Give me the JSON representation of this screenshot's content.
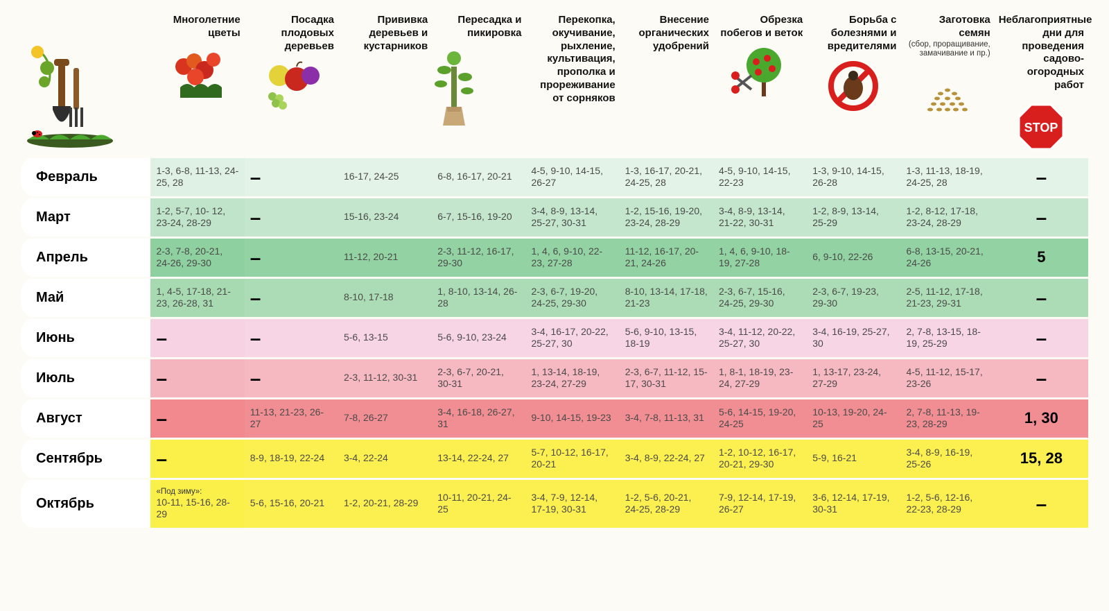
{
  "background_color": "#fcfbf5",
  "font_family": "Arial",
  "columns": [
    {
      "key": "perennials",
      "label": "Многолетние цветы"
    },
    {
      "key": "fruit_trees",
      "label": "Посадка плодовых деревьев"
    },
    {
      "key": "grafting",
      "label": "Прививка деревьев и кустарников"
    },
    {
      "key": "transplant",
      "label": "Пересадка и пикировка"
    },
    {
      "key": "digging",
      "label": "Перекопка, окучивание, рыхление, культивация, прополка и прореживание от сорняков"
    },
    {
      "key": "fertilize",
      "label": "Внесение органических удобрений"
    },
    {
      "key": "pruning",
      "label": "Обрезка побегов и веток"
    },
    {
      "key": "pests",
      "label": "Борьба с болезнями и вредителями"
    },
    {
      "key": "seeds",
      "label": "Заготовка семян",
      "sub": "(сбор, проращивание, замачивание и пр.)"
    },
    {
      "key": "bad",
      "label": "Неблагоприятные дни для проведения садово-огородных работ"
    }
  ],
  "row_gradients": {
    "feb": [
      "#dff1e4",
      "#e3f3e7",
      "#e3f3e7",
      "#e3f3e7",
      "#e3f3e7",
      "#e3f3e7",
      "#e3f3e7",
      "#e3f3e7",
      "#e3f3e7",
      "#e3f3e7"
    ],
    "mar": [
      "#c0e4c9",
      "#c4e6cd",
      "#c4e6cd",
      "#c4e6cd",
      "#c4e6cd",
      "#c4e6cd",
      "#c4e6cd",
      "#c4e6cd",
      "#c4e6cd",
      "#c4e6cd"
    ],
    "apr": [
      "#8fd0a0",
      "#93d2a3",
      "#93d2a3",
      "#93d2a3",
      "#93d2a3",
      "#93d2a3",
      "#93d2a3",
      "#93d2a3",
      "#93d2a3",
      "#93d2a3"
    ],
    "may": [
      "#a8dab2",
      "#acdcb5",
      "#acdcb5",
      "#acdcb5",
      "#acdcb5",
      "#acdcb5",
      "#acdcb5",
      "#acdcb5",
      "#acdcb5",
      "#acdcb5"
    ],
    "jun": [
      "#f7d2e3",
      "#f8d5e5",
      "#f8d5e5",
      "#f8d5e5",
      "#f8d5e5",
      "#f8d5e5",
      "#f8d5e5",
      "#f8d5e5",
      "#f8d5e5",
      "#f8d5e5"
    ],
    "jul": [
      "#f5b5bf",
      "#f6b9c2",
      "#f6b9c2",
      "#f6b9c2",
      "#f6b9c2",
      "#f6b9c2",
      "#f6b9c2",
      "#f6b9c2",
      "#f6b9c2",
      "#f6b9c2"
    ],
    "aug": [
      "#f1898f",
      "#f18e93",
      "#f18e93",
      "#f18e93",
      "#f18e93",
      "#f18e93",
      "#f18e93",
      "#f18e93",
      "#f18e93",
      "#f18e93"
    ],
    "sep": [
      "#fbef4a",
      "#fcf050",
      "#fcf050",
      "#fcf050",
      "#fcf050",
      "#fcf050",
      "#fcf050",
      "#fcf050",
      "#fcf050",
      "#fcf050"
    ],
    "oct": [
      "#fbef4a",
      "#fcf050",
      "#fcf050",
      "#fcf050",
      "#fcf050",
      "#fcf050",
      "#fcf050",
      "#fcf050",
      "#fcf050",
      "#fcf050"
    ]
  },
  "rows": [
    {
      "key": "feb",
      "month": "Февраль",
      "cells": [
        "1-3, 6-8, 11-13, 24-25, 28",
        "–",
        "16-17, 24-25",
        "6-8, 16-17, 20-21",
        "4-5, 9-10, 14-15, 26-27",
        "1-3, 16-17, 20-21, 24-25, 28",
        "4-5, 9-10, 14-15, 22-23",
        "1-3, 9-10, 14-15, 26-28",
        "1-3, 11-13, 18-19, 24-25, 28",
        "–"
      ]
    },
    {
      "key": "mar",
      "month": "Март",
      "cells": [
        "1-2, 5-7, 10- 12, 23-24, 28-29",
        "–",
        "15-16, 23-24",
        "6-7, 15-16, 19-20",
        "3-4, 8-9, 13-14, 25-27, 30-31",
        "1-2, 15-16, 19-20, 23-24, 28-29",
        "3-4, 8-9, 13-14, 21-22, 30-31",
        "1-2, 8-9, 13-14, 25-29",
        "1-2, 8-12, 17-18, 23-24, 28-29",
        "–"
      ]
    },
    {
      "key": "apr",
      "month": "Апрель",
      "cells": [
        "2-3, 7-8, 20-21, 24-26, 29-30",
        "–",
        "11-12, 20-21",
        "2-3, 11-12, 16-17, 29-30",
        "1, 4, 6, 9-10, 22-23, 27-28",
        "11-12, 16-17, 20-21, 24-26",
        "1, 4, 6, 9-10, 18-19, 27-28",
        "6, 9-10, 22-26",
        "6-8, 13-15, 20-21, 24-26",
        "5"
      ]
    },
    {
      "key": "may",
      "month": "Май",
      "cells": [
        "1, 4-5, 17-18, 21-23, 26-28, 31",
        "–",
        "8-10, 17-18",
        "1, 8-10, 13-14, 26-28",
        "2-3, 6-7, 19-20, 24-25, 29-30",
        "8-10, 13-14, 17-18, 21-23",
        "2-3, 6-7, 15-16, 24-25, 29-30",
        "2-3, 6-7, 19-23, 29-30",
        "2-5, 11-12, 17-18, 21-23, 29-31",
        "–"
      ]
    },
    {
      "key": "jun",
      "month": "Июнь",
      "cells": [
        "–",
        "–",
        "5-6, 13-15",
        "5-6, 9-10, 23-24",
        "3-4, 16-17, 20-22, 25-27, 30",
        "5-6, 9-10, 13-15, 18-19",
        "3-4, 11-12, 20-22, 25-27, 30",
        "3-4, 16-19, 25-27, 30",
        "2, 7-8, 13-15, 18-19, 25-29",
        "–"
      ]
    },
    {
      "key": "jul",
      "month": "Июль",
      "cells": [
        "–",
        "–",
        "2-3, 11-12, 30-31",
        "2-3, 6-7, 20-21, 30-31",
        "1, 13-14, 18-19, 23-24, 27-29",
        "2-3, 6-7, 11-12, 15-17, 30-31",
        "1, 8-1, 18-19, 23-24, 27-29",
        "1, 13-17, 23-24, 27-29",
        "4-5, 11-12, 15-17, 23-26",
        "–"
      ]
    },
    {
      "key": "aug",
      "month": "Август",
      "cells": [
        "–",
        "11-13, 21-23, 26-27",
        "7-8, 26-27",
        "3-4, 16-18, 26-27, 31",
        "9-10, 14-15, 19-23",
        "3-4, 7-8, 11-13, 31",
        "5-6, 14-15, 19-20, 24-25",
        "10-13, 19-20, 24-25",
        "2, 7-8, 11-13, 19-23, 28-29",
        "1, 30"
      ]
    },
    {
      "key": "sep",
      "month": "Сентябрь",
      "cells": [
        "–",
        "8-9, 18-19, 22-24",
        "3-4, 22-24",
        "13-14, 22-24, 27",
        "5-7, 10-12, 16-17, 20-21",
        "3-4, 8-9, 22-24, 27",
        "1-2, 10-12, 16-17, 20-21, 29-30",
        "5-9, 16-21",
        "3-4, 8-9, 16-19, 25-26",
        "15, 28"
      ]
    },
    {
      "key": "oct",
      "month": "Октябрь",
      "note": "«Под зиму»:",
      "cells": [
        "10-11, 15-16, 28-29",
        "5-6, 15-16, 20-21",
        "1-2, 20-21, 28-29",
        "10-11, 20-21, 24-25",
        "3-4, 7-9, 12-14, 17-19, 30-31",
        "1-2, 5-6, 20-21, 24-25, 28-29",
        "7-9, 12-14, 17-19, 26-27",
        "3-6, 12-14, 17-19, 30-31",
        "1-2, 5-6, 12-16, 22-23, 28-29",
        "–"
      ]
    }
  ]
}
